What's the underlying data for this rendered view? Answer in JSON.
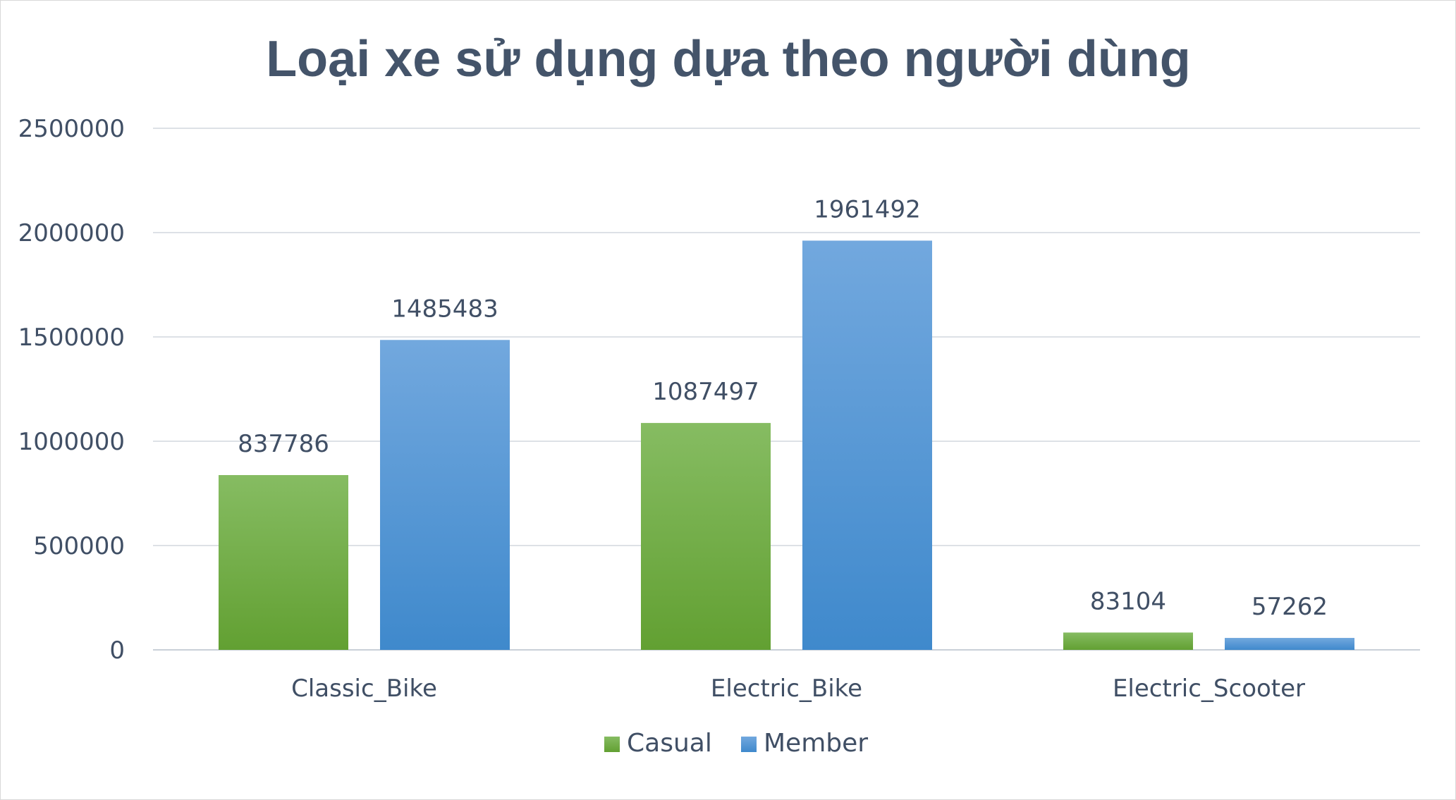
{
  "chart_data": {
    "type": "bar",
    "title": "Loại xe sử dụng dựa theo người dùng",
    "categories": [
      "Classic_Bike",
      "Electric_Bike",
      "Electric_Scooter"
    ],
    "series": [
      {
        "name": "Casual",
        "values": [
          837786,
          1087497,
          83104
        ],
        "color": "#70ad47",
        "color_light": "#86bc62",
        "color_dark": "#62a032"
      },
      {
        "name": "Member",
        "values": [
          1485483,
          1961492,
          57262
        ],
        "color": "#5b9bd5",
        "color_light": "#72a8de",
        "color_dark": "#3f89cc"
      }
    ],
    "yticks": [
      "0",
      "500000",
      "1000000",
      "1500000",
      "2000000",
      "2500000"
    ],
    "ylim": [
      0,
      2500000
    ],
    "grid": true,
    "legend": "bottom"
  }
}
